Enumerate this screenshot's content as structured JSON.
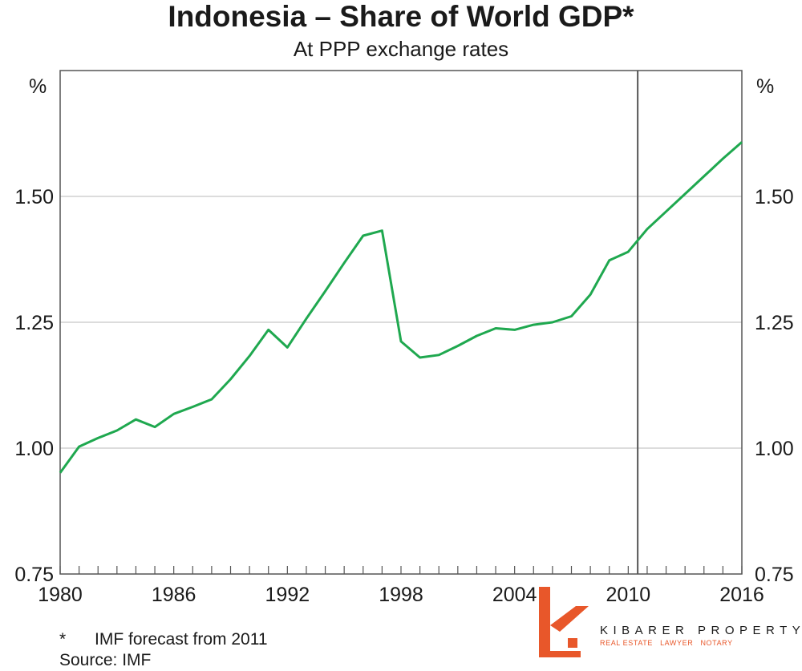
{
  "colors": {
    "line": "#1fa84f",
    "grid": "#c8c8c8",
    "axis": "#555555",
    "forecast_divider": "#555555",
    "logo_accent": "#e8572a"
  },
  "chart_data": {
    "type": "line",
    "title": "Indonesia – Share of World GDP*",
    "subtitle": "At PPP exchange rates",
    "y_unit_left": "%",
    "y_unit_right": "%",
    "xlim": [
      1980,
      2016
    ],
    "ylim": [
      0.75,
      1.75
    ],
    "x_ticks": [
      "1980",
      "1986",
      "1992",
      "1998",
      "2004",
      "2010",
      "2016"
    ],
    "y_ticks": [
      "0.75",
      "1.00",
      "1.25",
      "1.50"
    ],
    "grid": true,
    "forecast_start_x": 2010.5,
    "series": [
      {
        "x": [
          1980,
          1981,
          1982,
          1983,
          1984,
          1985,
          1986,
          1987,
          1988,
          1989,
          1990,
          1991,
          1992,
          1993,
          1994,
          1995,
          1996,
          1997,
          1998,
          1999,
          2000,
          2001,
          2002,
          2003,
          2004,
          2005,
          2006,
          2007,
          2008,
          2009,
          2010,
          2011,
          2012,
          2013,
          2014,
          2015,
          2016
        ],
        "values": [
          0.951,
          1.003,
          1.02,
          1.035,
          1.057,
          1.042,
          1.068,
          1.082,
          1.097,
          1.137,
          1.183,
          1.235,
          1.2,
          1.257,
          1.312,
          1.368,
          1.422,
          1.432,
          1.212,
          1.18,
          1.185,
          1.203,
          1.223,
          1.238,
          1.235,
          1.245,
          1.25,
          1.262,
          1.305,
          1.373,
          1.39,
          1.435,
          1.47,
          1.505,
          1.54,
          1.575,
          1.608
        ]
      }
    ]
  },
  "notes": {
    "footnote_mark": "*",
    "footnote_text": "IMF forecast from 2011",
    "source": "Source: IMF"
  },
  "logo": {
    "name": "KIBARER PROPERTY",
    "tag_1": "REAL ESTATE",
    "tag_2": "LAWYER",
    "tag_3": "NOTARY"
  }
}
